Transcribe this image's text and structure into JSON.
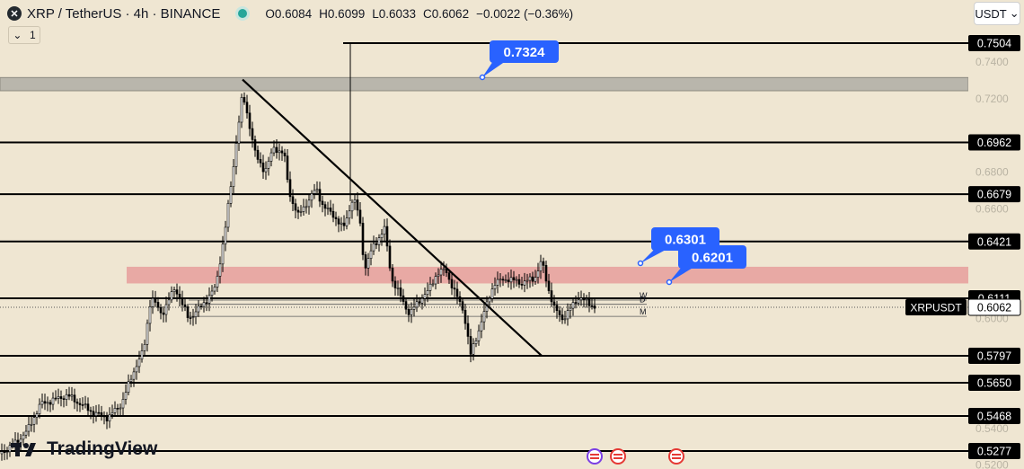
{
  "header": {
    "symbol_title": "XRP / TetherUS · 4h · BINANCE",
    "open_label": "O",
    "open": "0.6084",
    "high_label": "H",
    "high": "0.6099",
    "low_label": "L",
    "low": "0.6033",
    "close_label": "C",
    "close": "0.6062",
    "change": "−0.0022 (−0.36%)",
    "interval_value": "1",
    "currency": "USDT",
    "status_color": "#26a69a"
  },
  "branding": {
    "logo_text": "TradingView"
  },
  "colors": {
    "background": "#efe6d2",
    "candle": "#000000",
    "callout": "#2962ff",
    "resistance_zone": "#e8a9a4",
    "top_zone": "#b9b6ac"
  },
  "chart_data": {
    "type": "candlestick",
    "symbol": "XRPUSDT",
    "exchange": "BINANCE",
    "timeframe": "4h",
    "ylim": [
      0.52,
      0.76
    ],
    "price_axis_ticks": [
      "0.7400",
      "0.7200",
      "0.6800",
      "0.6600",
      "0.6000",
      "0.5400",
      "0.5200"
    ],
    "last_price": {
      "label": "XRPUSDT",
      "value": 0.6062,
      "text": "0.6062"
    },
    "horizontal_levels": [
      {
        "value": 0.7504,
        "text": "0.7504"
      },
      {
        "value": 0.6962,
        "text": "0.6962"
      },
      {
        "value": 0.6679,
        "text": "0.6679"
      },
      {
        "value": 0.6421,
        "text": "0.6421"
      },
      {
        "value": 0.6111,
        "text": "0.6111"
      },
      {
        "value": 0.5797,
        "text": "0.5797"
      },
      {
        "value": 0.565,
        "text": "0.5650"
      },
      {
        "value": 0.5468,
        "text": "0.5468"
      },
      {
        "value": 0.5277,
        "text": "0.5277"
      }
    ],
    "zones": [
      {
        "name": "top-zone",
        "from": 0.7244,
        "to": 0.7316
      },
      {
        "name": "resistance-zone",
        "from": 0.6192,
        "to": 0.6283
      }
    ],
    "pivot_levels": [
      {
        "label": "W",
        "value": 0.6101
      },
      {
        "label": "D",
        "value": 0.6078
      },
      {
        "label": "M",
        "value": 0.6012
      }
    ],
    "callouts": [
      {
        "text": "0.7324",
        "value": 0.7324
      },
      {
        "text": "0.6301",
        "value": 0.6301
      },
      {
        "text": "0.6201",
        "value": 0.6201
      }
    ],
    "trendline": {
      "from_value": 0.7305,
      "to_value": 0.5797
    },
    "wick_line": {
      "from_value": 0.664,
      "to_value": 0.7504
    },
    "event_markers": 3
  }
}
